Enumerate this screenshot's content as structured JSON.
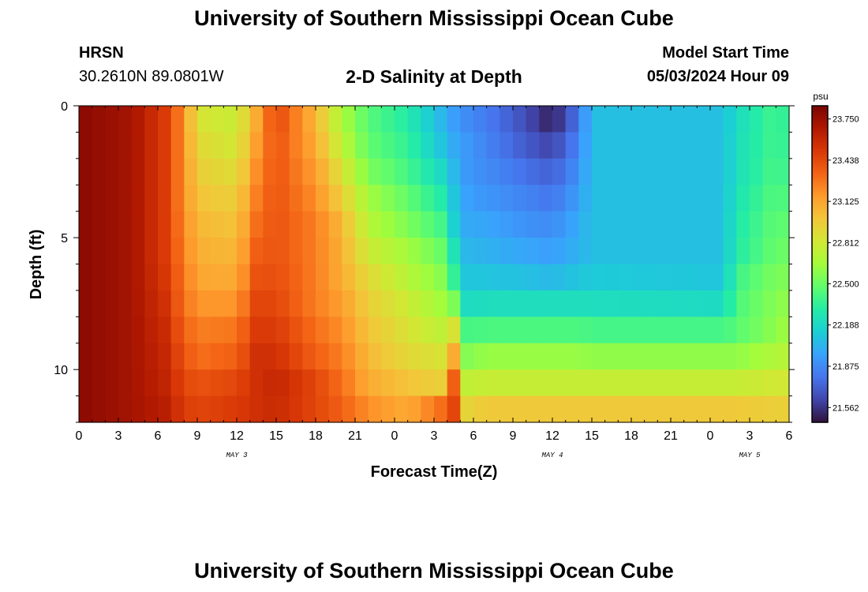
{
  "header": {
    "title": "University of Southern Mississippi Ocean Cube",
    "station": "HRSN",
    "coords": "30.2610N  89.0801W",
    "subtitle": "2-D Salinity at Depth",
    "model_start_label": "Model Start Time",
    "model_start_value": "05/03/2024 Hour 09"
  },
  "footer": {
    "title": "University of Southern Mississippi Ocean Cube"
  },
  "chart_data": {
    "type": "heatmap",
    "title": "2-D Salinity at Depth",
    "xlabel": "Forecast Time(Z)",
    "ylabel": "Depth (ft)",
    "x_tick_labels": [
      "0",
      "3",
      "6",
      "9",
      "12",
      "15",
      "18",
      "21",
      "0",
      "3",
      "6",
      "9",
      "12",
      "15",
      "18",
      "21",
      "0",
      "3",
      "6"
    ],
    "x_range_hours": [
      0,
      54
    ],
    "date_labels": [
      {
        "hour": 12,
        "text": "MAY 3"
      },
      {
        "hour": 36,
        "text": "MAY 4"
      },
      {
        "hour": 51,
        "text": "MAY 5"
      }
    ],
    "y_ticks": [
      0,
      5,
      10
    ],
    "y_range_ft": [
      0,
      12
    ],
    "colorbar": {
      "unit": "psu",
      "min": 21.45,
      "max": 23.85,
      "tick_values": [
        23.75,
        23.438,
        23.125,
        22.812,
        22.5,
        22.188,
        21.875,
        21.562
      ],
      "tick_labels": [
        "23.750",
        "23.438",
        "23.125",
        "22.812",
        "22.500",
        "22.188",
        "21.875",
        "21.562"
      ]
    },
    "depth_levels_ft": [
      0.5,
      1.5,
      2.5,
      3.5,
      4.5,
      5.5,
      6.5,
      7.5,
      8.5,
      9.5,
      10.5,
      11.5
    ],
    "time_keys": [
      {
        "hour": 0,
        "rows": [
          23.8,
          23.8,
          23.8,
          23.8,
          23.8,
          23.8,
          23.8,
          23.8,
          23.8,
          23.8,
          23.8,
          23.8
        ]
      },
      {
        "hour": 4,
        "rows": [
          23.72,
          23.72,
          23.72,
          23.72,
          23.72,
          23.72,
          23.72,
          23.72,
          23.72,
          23.72,
          23.72,
          23.72
        ]
      },
      {
        "hour": 6.5,
        "rows": [
          23.5,
          23.5,
          23.5,
          23.5,
          23.5,
          23.5,
          23.52,
          23.55,
          23.58,
          23.6,
          23.62,
          23.65
        ]
      },
      {
        "hour": 8,
        "rows": [
          23.2,
          23.2,
          23.2,
          23.2,
          23.22,
          23.25,
          23.28,
          23.3,
          23.35,
          23.4,
          23.45,
          23.5
        ]
      },
      {
        "hour": 9,
        "rows": [
          22.85,
          22.9,
          22.95,
          23.0,
          23.05,
          23.08,
          23.12,
          23.18,
          23.25,
          23.3,
          23.4,
          23.45
        ]
      },
      {
        "hour": 12,
        "rows": [
          22.78,
          22.82,
          22.88,
          22.95,
          23.0,
          23.05,
          23.1,
          23.18,
          23.28,
          23.35,
          23.45,
          23.5
        ]
      },
      {
        "hour": 13.5,
        "rows": [
          23.1,
          23.15,
          23.2,
          23.25,
          23.3,
          23.35,
          23.4,
          23.45,
          23.5,
          23.55,
          23.55,
          23.55
        ]
      },
      {
        "hour": 15,
        "rows": [
          23.45,
          23.4,
          23.4,
          23.4,
          23.4,
          23.4,
          23.42,
          23.45,
          23.5,
          23.55,
          23.6,
          23.58
        ]
      },
      {
        "hour": 18,
        "rows": [
          23.05,
          23.1,
          23.15,
          23.2,
          23.25,
          23.25,
          23.25,
          23.25,
          23.3,
          23.35,
          23.45,
          23.45
        ]
      },
      {
        "hour": 20,
        "rows": [
          22.68,
          22.75,
          22.85,
          22.95,
          23.05,
          23.08,
          23.1,
          23.15,
          23.2,
          23.25,
          23.3,
          23.35
        ]
      },
      {
        "hour": 22,
        "rows": [
          22.45,
          22.48,
          22.55,
          22.65,
          22.72,
          22.8,
          22.9,
          22.95,
          23.0,
          23.05,
          23.1,
          23.2
        ]
      },
      {
        "hour": 25,
        "rows": [
          22.3,
          22.35,
          22.4,
          22.48,
          22.55,
          22.65,
          22.72,
          22.8,
          22.85,
          22.9,
          23.0,
          23.1
        ]
      },
      {
        "hour": 27.5,
        "rows": [
          22.05,
          22.1,
          22.2,
          22.3,
          22.4,
          22.5,
          22.58,
          22.65,
          22.75,
          22.85,
          22.95,
          23.3
        ]
      },
      {
        "hour": 28.5,
        "rows": [
          21.95,
          22.0,
          22.05,
          22.1,
          22.15,
          22.25,
          22.35,
          22.55,
          22.85,
          23.1,
          23.35,
          23.45
        ]
      },
      {
        "hour": 29,
        "rows": [
          21.9,
          21.95,
          21.95,
          21.98,
          22.0,
          22.05,
          22.1,
          22.2,
          22.4,
          22.55,
          22.75,
          22.9
        ]
      },
      {
        "hour": 31,
        "rows": [
          21.82,
          21.85,
          21.88,
          21.92,
          21.98,
          22.02,
          22.1,
          22.22,
          22.42,
          22.62,
          22.78,
          22.98
        ]
      },
      {
        "hour": 34,
        "rows": [
          21.65,
          21.7,
          21.78,
          21.85,
          21.9,
          21.98,
          22.08,
          22.22,
          22.42,
          22.62,
          22.78,
          22.98
        ]
      },
      {
        "hour": 36,
        "rows": [
          21.5,
          21.62,
          21.72,
          21.8,
          21.88,
          21.95,
          22.05,
          22.22,
          22.42,
          22.62,
          22.78,
          22.98
        ]
      },
      {
        "hour": 38,
        "rows": [
          21.8,
          21.85,
          21.9,
          21.95,
          22.0,
          22.02,
          22.1,
          22.22,
          22.42,
          22.62,
          22.78,
          22.98
        ]
      },
      {
        "hour": 39,
        "rows": [
          22.08,
          22.08,
          22.08,
          22.08,
          22.08,
          22.08,
          22.12,
          22.22,
          22.4,
          22.6,
          22.78,
          22.98
        ]
      },
      {
        "hour": 49,
        "rows": [
          22.08,
          22.08,
          22.08,
          22.08,
          22.08,
          22.08,
          22.1,
          22.2,
          22.4,
          22.6,
          22.78,
          22.98
        ]
      },
      {
        "hour": 50,
        "rows": [
          22.2,
          22.22,
          22.22,
          22.25,
          22.28,
          22.3,
          22.38,
          22.42,
          22.45,
          22.6,
          22.78,
          22.98
        ]
      },
      {
        "hour": 53,
        "rows": [
          22.4,
          22.4,
          22.42,
          22.45,
          22.48,
          22.5,
          22.55,
          22.58,
          22.6,
          22.7,
          22.82,
          22.95
        ]
      },
      {
        "hour": 54,
        "rows": [
          22.3,
          22.32,
          22.35,
          22.4,
          22.45,
          22.5,
          22.55,
          22.6,
          22.65,
          22.72,
          22.82,
          22.95
        ]
      }
    ],
    "colormap": [
      "#30123b",
      "#4145ab",
      "#4675ed",
      "#39a2fc",
      "#1bcfd4",
      "#24eca6",
      "#61fc6c",
      "#a4fc3b",
      "#d1e834",
      "#f3c63a",
      "#fe9b2d",
      "#f36315",
      "#d93806",
      "#b11901",
      "#7a0403"
    ]
  }
}
